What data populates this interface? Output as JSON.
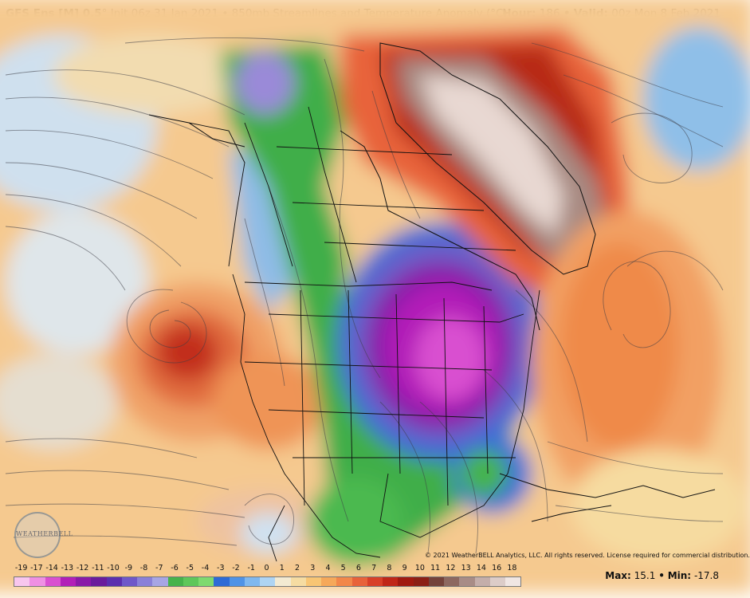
{
  "header": {
    "model": "GFS Ens [M] 0.5",
    "degree": "°",
    "init": "Init 06z 31 Jan 2021",
    "bullet": "•",
    "product": "850mb Streamlines and Temperature Anomaly (°C)",
    "hour_label": "Hour:",
    "hour_value": "186",
    "valid_label": "Valid:",
    "valid_value": "00z Mon 8 Feb 2021"
  },
  "copyright": "© 2021 WeatherBELL Analytics, LLC. All rights reserved. License required for commercial distribution.",
  "logo_text": "WEATHERBELL",
  "colorbar": {
    "ticks": [
      "-19",
      "-17",
      "-14",
      "-13",
      "-12",
      "-11",
      "-10",
      "-9",
      "-8",
      "-7",
      "-6",
      "-5",
      "-4",
      "-3",
      "-2",
      "-1",
      "0",
      "1",
      "2",
      "3",
      "4",
      "5",
      "6",
      "7",
      "8",
      "9",
      "10",
      "11",
      "12",
      "13",
      "14",
      "16",
      "18"
    ],
    "colors": [
      "#f8c6ee",
      "#ef8fe3",
      "#d94fd0",
      "#b21fb8",
      "#8a1aa8",
      "#6a1c9c",
      "#5b2fae",
      "#6f58c9",
      "#8a80d8",
      "#a7a5e4",
      "#47b34b",
      "#5fc75a",
      "#7fda6f",
      "#2e6bd6",
      "#4f93e6",
      "#7fb8ef",
      "#aed4f3",
      "#f3ead2",
      "#f6dca2",
      "#f8c574",
      "#f6a85a",
      "#f2874a",
      "#e8623a",
      "#d84028",
      "#c02718",
      "#a11a10",
      "#8c1f15",
      "#74423a",
      "#8d6860",
      "#a88c86",
      "#c4aeaa",
      "#dcccc8",
      "#f0e6e3"
    ]
  },
  "stats": {
    "max_label": "Max:",
    "max_value": "15.1",
    "sep": "•",
    "min_label": "Min:",
    "min_value": "-17.8"
  }
}
